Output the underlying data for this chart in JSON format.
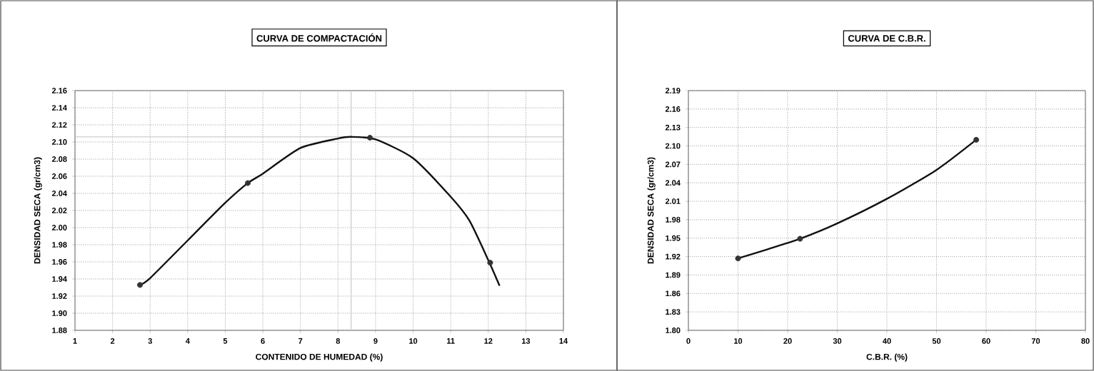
{
  "chart_data": [
    {
      "type": "scatter",
      "title": "CURVA DE COMPACTACIÓN",
      "xlabel": "CONTENIDO DE HUMEDAD (%)",
      "ylabel": "DENSIDAD SECA (gr/cm3)",
      "xlim": [
        1,
        14
      ],
      "ylim": [
        1.88,
        2.16
      ],
      "xticks": [
        1,
        2,
        3,
        4,
        5,
        6,
        7,
        8,
        9,
        10,
        11,
        12,
        13,
        14
      ],
      "yticks": [
        {
          "value": 1.88,
          "label": "1.88"
        },
        {
          "value": 1.9,
          "label": "1.90"
        },
        {
          "value": 1.92,
          "label": "1.92"
        },
        {
          "value": 1.94,
          "label": "1.94"
        },
        {
          "value": 1.96,
          "label": "1.96"
        },
        {
          "value": 1.98,
          "label": "1.98"
        },
        {
          "value": 2.0,
          "label": "2.00"
        },
        {
          "value": 2.02,
          "label": "2.02"
        },
        {
          "value": 2.04,
          "label": "2.04"
        },
        {
          "value": 2.06,
          "label": "2.06"
        },
        {
          "value": 2.08,
          "label": "2.08"
        },
        {
          "value": 2.1,
          "label": "2.10"
        },
        {
          "value": 2.12,
          "label": "2.12"
        },
        {
          "value": 2.14,
          "label": "2.14"
        },
        {
          "value": 2.16,
          "label": "2.16"
        }
      ],
      "grid": true,
      "ref_lines": [
        {
          "axis": "x",
          "value": 8.35,
          "color": "#c8c8c8"
        },
        {
          "axis": "y",
          "value": 2.106,
          "color": "#c8c8c8"
        }
      ],
      "series": [
        {
          "marker": "circle",
          "color": "#333333",
          "x": [
            2.73,
            5.6,
            8.85,
            12.05
          ],
          "values": [
            1.933,
            2.052,
            2.105,
            1.959
          ]
        },
        {
          "type": "line",
          "marker": "none",
          "color": "#111111",
          "x": [
            2.73,
            3,
            4,
            5,
            5.6,
            6,
            7,
            8,
            8.35,
            9,
            10,
            11,
            11.5,
            12,
            12.3
          ],
          "values": [
            1.933,
            1.941,
            1.985,
            2.029,
            2.052,
            2.063,
            2.093,
            2.104,
            2.106,
            2.103,
            2.081,
            2.036,
            2.008,
            1.962,
            1.932
          ]
        }
      ]
    },
    {
      "type": "scatter",
      "title": "CURVA DE C.B.R.",
      "xlabel": "C.B.R. (%)",
      "ylabel": "DENSIDAD SECA (gr/cm3)",
      "xlim": [
        0,
        80
      ],
      "ylim": [
        1.8,
        2.19
      ],
      "xticks": [
        0,
        10,
        20,
        30,
        40,
        50,
        60,
        70,
        80
      ],
      "yticks": [
        {
          "value": 1.8,
          "label": "1.80"
        },
        {
          "value": 1.83,
          "label": "1.83"
        },
        {
          "value": 1.86,
          "label": "1.86"
        },
        {
          "value": 1.89,
          "label": "1.89"
        },
        {
          "value": 1.92,
          "label": "1.92"
        },
        {
          "value": 1.95,
          "label": "1.95"
        },
        {
          "value": 1.98,
          "label": "1.98"
        },
        {
          "value": 2.01,
          "label": "2.01"
        },
        {
          "value": 2.04,
          "label": "2.04"
        },
        {
          "value": 2.07,
          "label": "2.07"
        },
        {
          "value": 2.1,
          "label": "2.10"
        },
        {
          "value": 2.13,
          "label": "2.13"
        },
        {
          "value": 2.16,
          "label": "2.16"
        },
        {
          "value": 2.19,
          "label": "2.19"
        }
      ],
      "grid": true,
      "series": [
        {
          "marker": "circle",
          "color": "#333333",
          "x": [
            10,
            22.5,
            58
          ],
          "values": [
            1.917,
            1.949,
            2.11
          ]
        },
        {
          "type": "line",
          "marker": "none",
          "color": "#111111",
          "x": [
            10,
            16,
            22.5,
            30,
            40,
            50,
            58
          ],
          "values": [
            1.917,
            1.932,
            1.949,
            1.974,
            2.014,
            2.061,
            2.11
          ]
        }
      ]
    }
  ]
}
